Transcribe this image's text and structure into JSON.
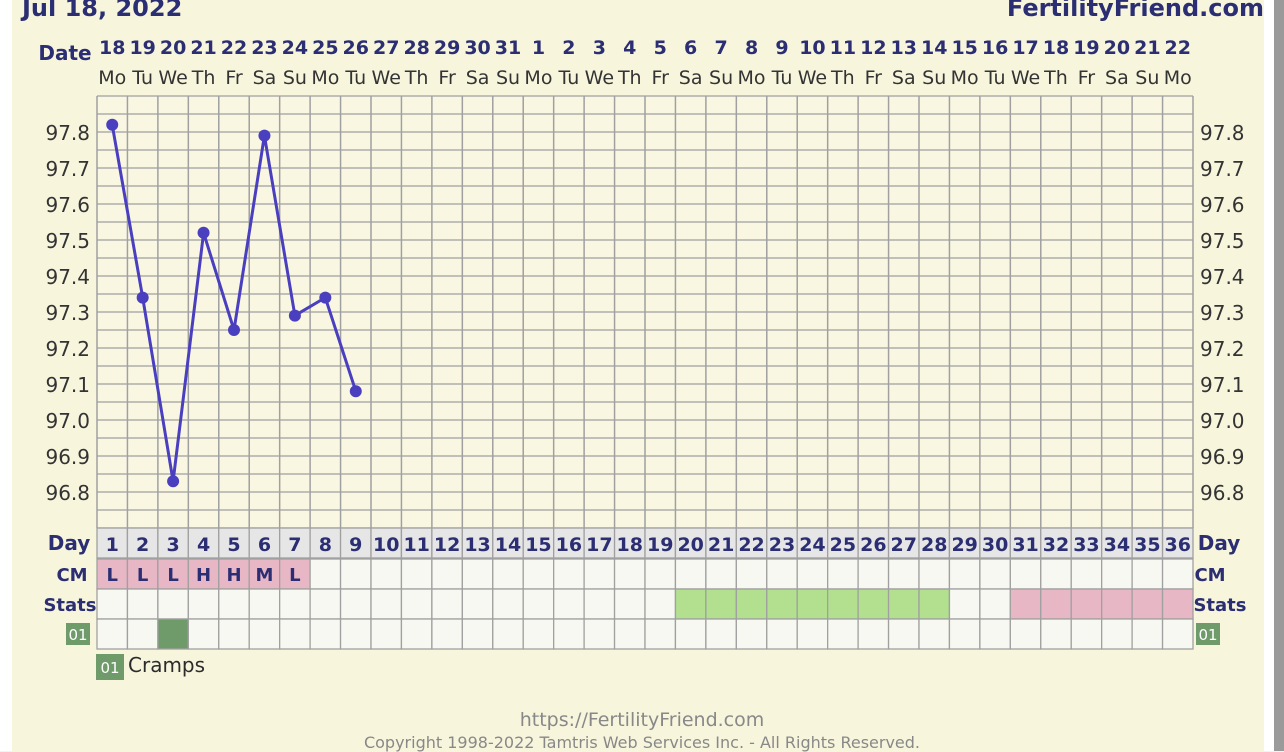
{
  "header": {
    "chart_date": "Jul 18, 2022",
    "site_name": "FertilityFriend.com"
  },
  "row_labels": {
    "date": "Date",
    "day": "Day",
    "cm": "CM",
    "stats": "Stats",
    "custom_code": "01"
  },
  "dates": [
    "18",
    "19",
    "20",
    "21",
    "22",
    "23",
    "24",
    "25",
    "26",
    "27",
    "28",
    "29",
    "30",
    "31",
    "1",
    "2",
    "3",
    "4",
    "5",
    "6",
    "7",
    "8",
    "9",
    "10",
    "11",
    "12",
    "13",
    "14",
    "15",
    "16",
    "17",
    "18",
    "19",
    "20",
    "21",
    "22"
  ],
  "weekdays": [
    "Mo",
    "Tu",
    "We",
    "Th",
    "Fr",
    "Sa",
    "Su",
    "Mo",
    "Tu",
    "We",
    "Th",
    "Fr",
    "Sa",
    "Su",
    "Mo",
    "Tu",
    "We",
    "Th",
    "Fr",
    "Sa",
    "Su",
    "Mo",
    "Tu",
    "We",
    "Th",
    "Fr",
    "Sa",
    "Su",
    "Mo",
    "Tu",
    "We",
    "Th",
    "Fr",
    "Sa",
    "Su",
    "Mo"
  ],
  "cycle_days": [
    "1",
    "2",
    "3",
    "4",
    "5",
    "6",
    "7",
    "8",
    "9",
    "10",
    "11",
    "12",
    "13",
    "14",
    "15",
    "16",
    "17",
    "18",
    "19",
    "20",
    "21",
    "22",
    "23",
    "24",
    "25",
    "26",
    "27",
    "28",
    "29",
    "30",
    "31",
    "32",
    "33",
    "34",
    "35",
    "36"
  ],
  "cm_values": [
    "L",
    "L",
    "L",
    "H",
    "H",
    "M",
    "L"
  ],
  "stats_shading": [
    {
      "from_day": 20,
      "to_day": 28,
      "color": "#b2e08e"
    },
    {
      "from_day": 31,
      "to_day": 36,
      "color": "#e8b7c6"
    }
  ],
  "custom_marks": [
    {
      "day": 3,
      "color": "#6f9a6a"
    }
  ],
  "legend": {
    "code": "01",
    "label": "Cramps"
  },
  "footer": {
    "url": "https://FertilityFriend.com",
    "copyright": "Copyright 1998-2022 Tamtris Web Services Inc. - All Rights Reserved."
  },
  "colors": {
    "line": "#4a3fbf",
    "header_text": "#2b2e72",
    "grid": "#a0a0a0",
    "cm_cell": "#e8b7c6",
    "custom_code_bg": "#6f9a6a"
  },
  "chart_data": {
    "type": "line",
    "title": "",
    "xlabel": "Day",
    "ylabel": "",
    "x": [
      1,
      2,
      3,
      4,
      5,
      6,
      7,
      8,
      9
    ],
    "values": [
      97.82,
      97.34,
      96.83,
      97.52,
      97.25,
      97.79,
      97.29,
      97.34,
      97.08
    ],
    "ylim": [
      96.7,
      97.9
    ],
    "yticks": [
      "97.8",
      "97.7",
      "97.6",
      "97.5",
      "97.4",
      "97.3",
      "97.2",
      "97.1",
      "97.0",
      "96.9",
      "96.8"
    ],
    "grid": true
  }
}
